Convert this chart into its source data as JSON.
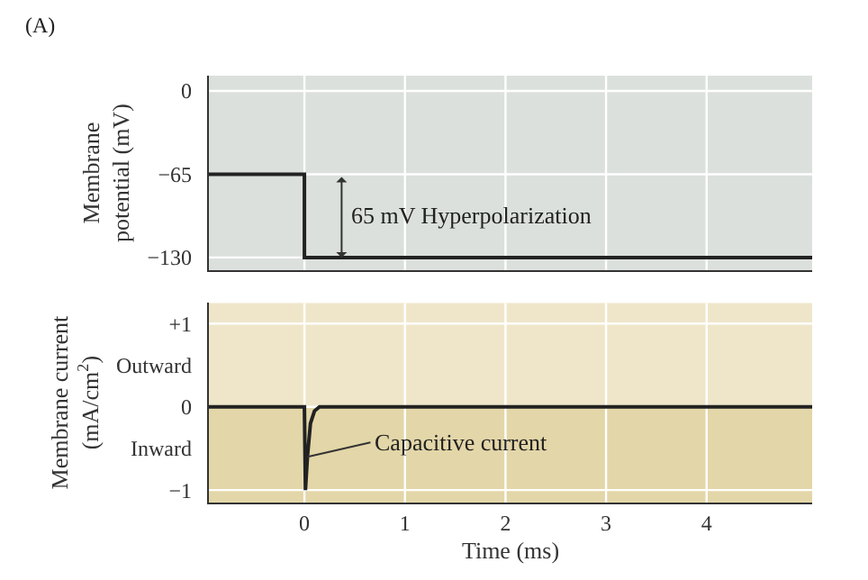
{
  "chart_data": [
    {
      "type": "line",
      "ylabel": "Membrane potential (mV)",
      "annotations": [
        "(A)",
        "65 mV Hyperpolarization"
      ],
      "x": [
        -0.95,
        0,
        0,
        5.05
      ],
      "series": [
        {
          "color": "#222222",
          "values": [
            -65,
            -65,
            -130,
            -130
          ]
        }
      ],
      "xlim": [
        -0.95,
        5.05
      ],
      "xticks": [
        0,
        1,
        2,
        3,
        4
      ],
      "ylim": [
        -140,
        12
      ],
      "yticks": [
        0,
        {
          "value": -65,
          "label": "−65"
        },
        {
          "value": -130,
          "label": "−130"
        }
      ],
      "tick_labels": "y",
      "grid": true,
      "legend": false
    },
    {
      "type": "line",
      "xlabel": "Time (ms)",
      "ylabel": "Membrane current (mA/cm$^{2}$)",
      "annotations": [
        {
          "text": "Capacitive current",
          "x": 0.03,
          "y": -0.6
        }
      ],
      "x": [
        -0.95,
        0,
        0.01,
        0.03,
        0.06,
        0.1,
        0.15,
        5.05
      ],
      "series": [
        {
          "color": "#222222",
          "values": [
            0,
            0,
            -1,
            -0.6,
            -0.2,
            -0.05,
            0,
            0
          ]
        }
      ],
      "bands": [
        {
          "axis": "y",
          "from": -1.15,
          "to": 0,
          "color": "#e3d6a8"
        }
      ],
      "xlim": [
        -0.95,
        5.05
      ],
      "xticks": [
        0,
        1,
        2,
        3,
        4
      ],
      "ylim": [
        -1.15,
        1.25
      ],
      "yticks": [
        {
          "value": 1,
          "label": "+1"
        },
        {
          "value": 0.5,
          "label": "Outward"
        },
        0,
        {
          "value": -0.5,
          "label": "Inward"
        },
        {
          "value": -1,
          "label": "−1"
        }
      ],
      "grid": true,
      "legend": false
    }
  ]
}
